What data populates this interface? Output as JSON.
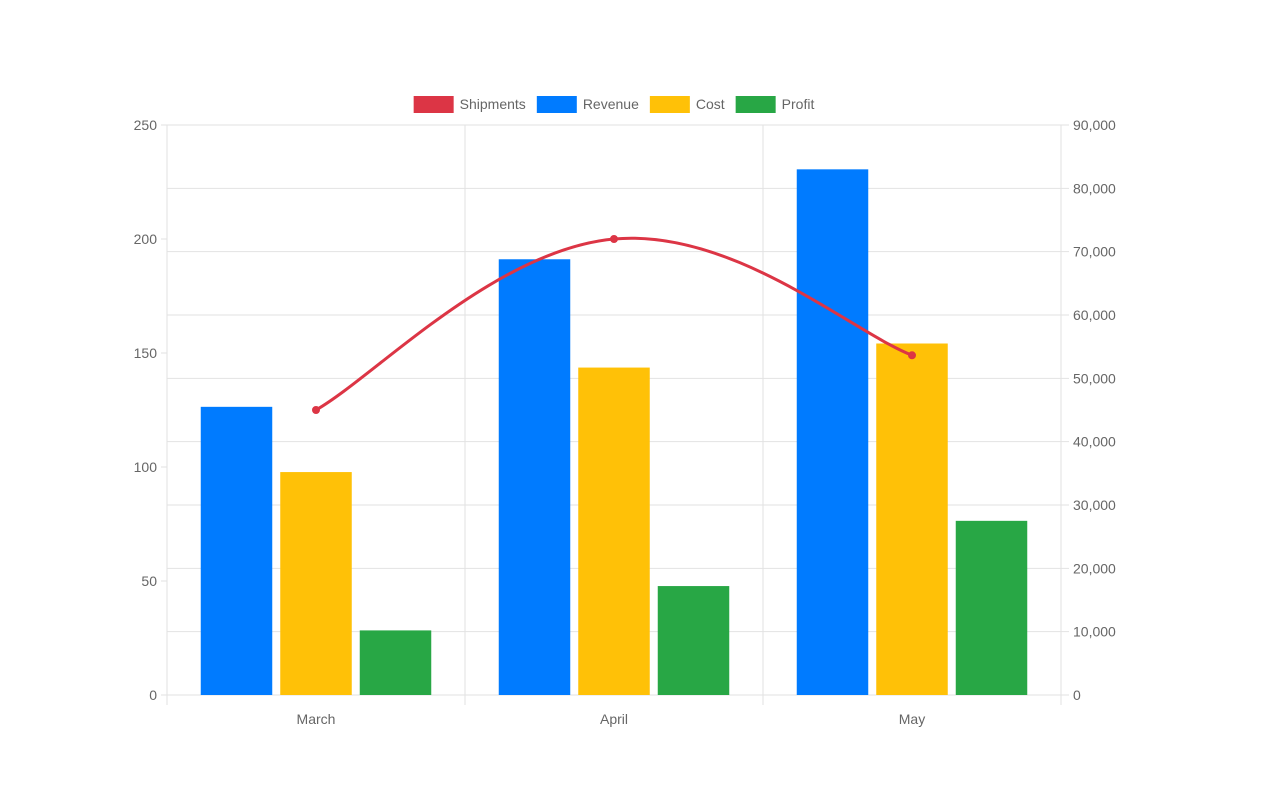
{
  "chart_data": {
    "type": "bar",
    "categories": [
      "March",
      "April",
      "May"
    ],
    "series": [
      {
        "name": "Shipments",
        "kind": "line",
        "axis": "left",
        "color": "#dc3545",
        "values": [
          125,
          200,
          149
        ]
      },
      {
        "name": "Revenue",
        "kind": "bar",
        "axis": "right",
        "color": "#007bff",
        "values": [
          45500,
          68800,
          83000
        ]
      },
      {
        "name": "Cost",
        "kind": "bar",
        "axis": "right",
        "color": "#ffc107",
        "values": [
          35200,
          51700,
          55500
        ]
      },
      {
        "name": "Profit",
        "kind": "bar",
        "axis": "right",
        "color": "#28a745",
        "values": [
          10200,
          17200,
          27500
        ]
      }
    ],
    "y_left": {
      "min": 0,
      "max": 250,
      "ticks": [
        "0",
        "50",
        "100",
        "150",
        "200",
        "250"
      ]
    },
    "y_right": {
      "min": 0,
      "max": 90000,
      "ticks": [
        "0",
        "10,000",
        "20,000",
        "30,000",
        "40,000",
        "50,000",
        "60,000",
        "70,000",
        "80,000",
        "90,000"
      ]
    },
    "legend_position": "top",
    "grid": true
  }
}
